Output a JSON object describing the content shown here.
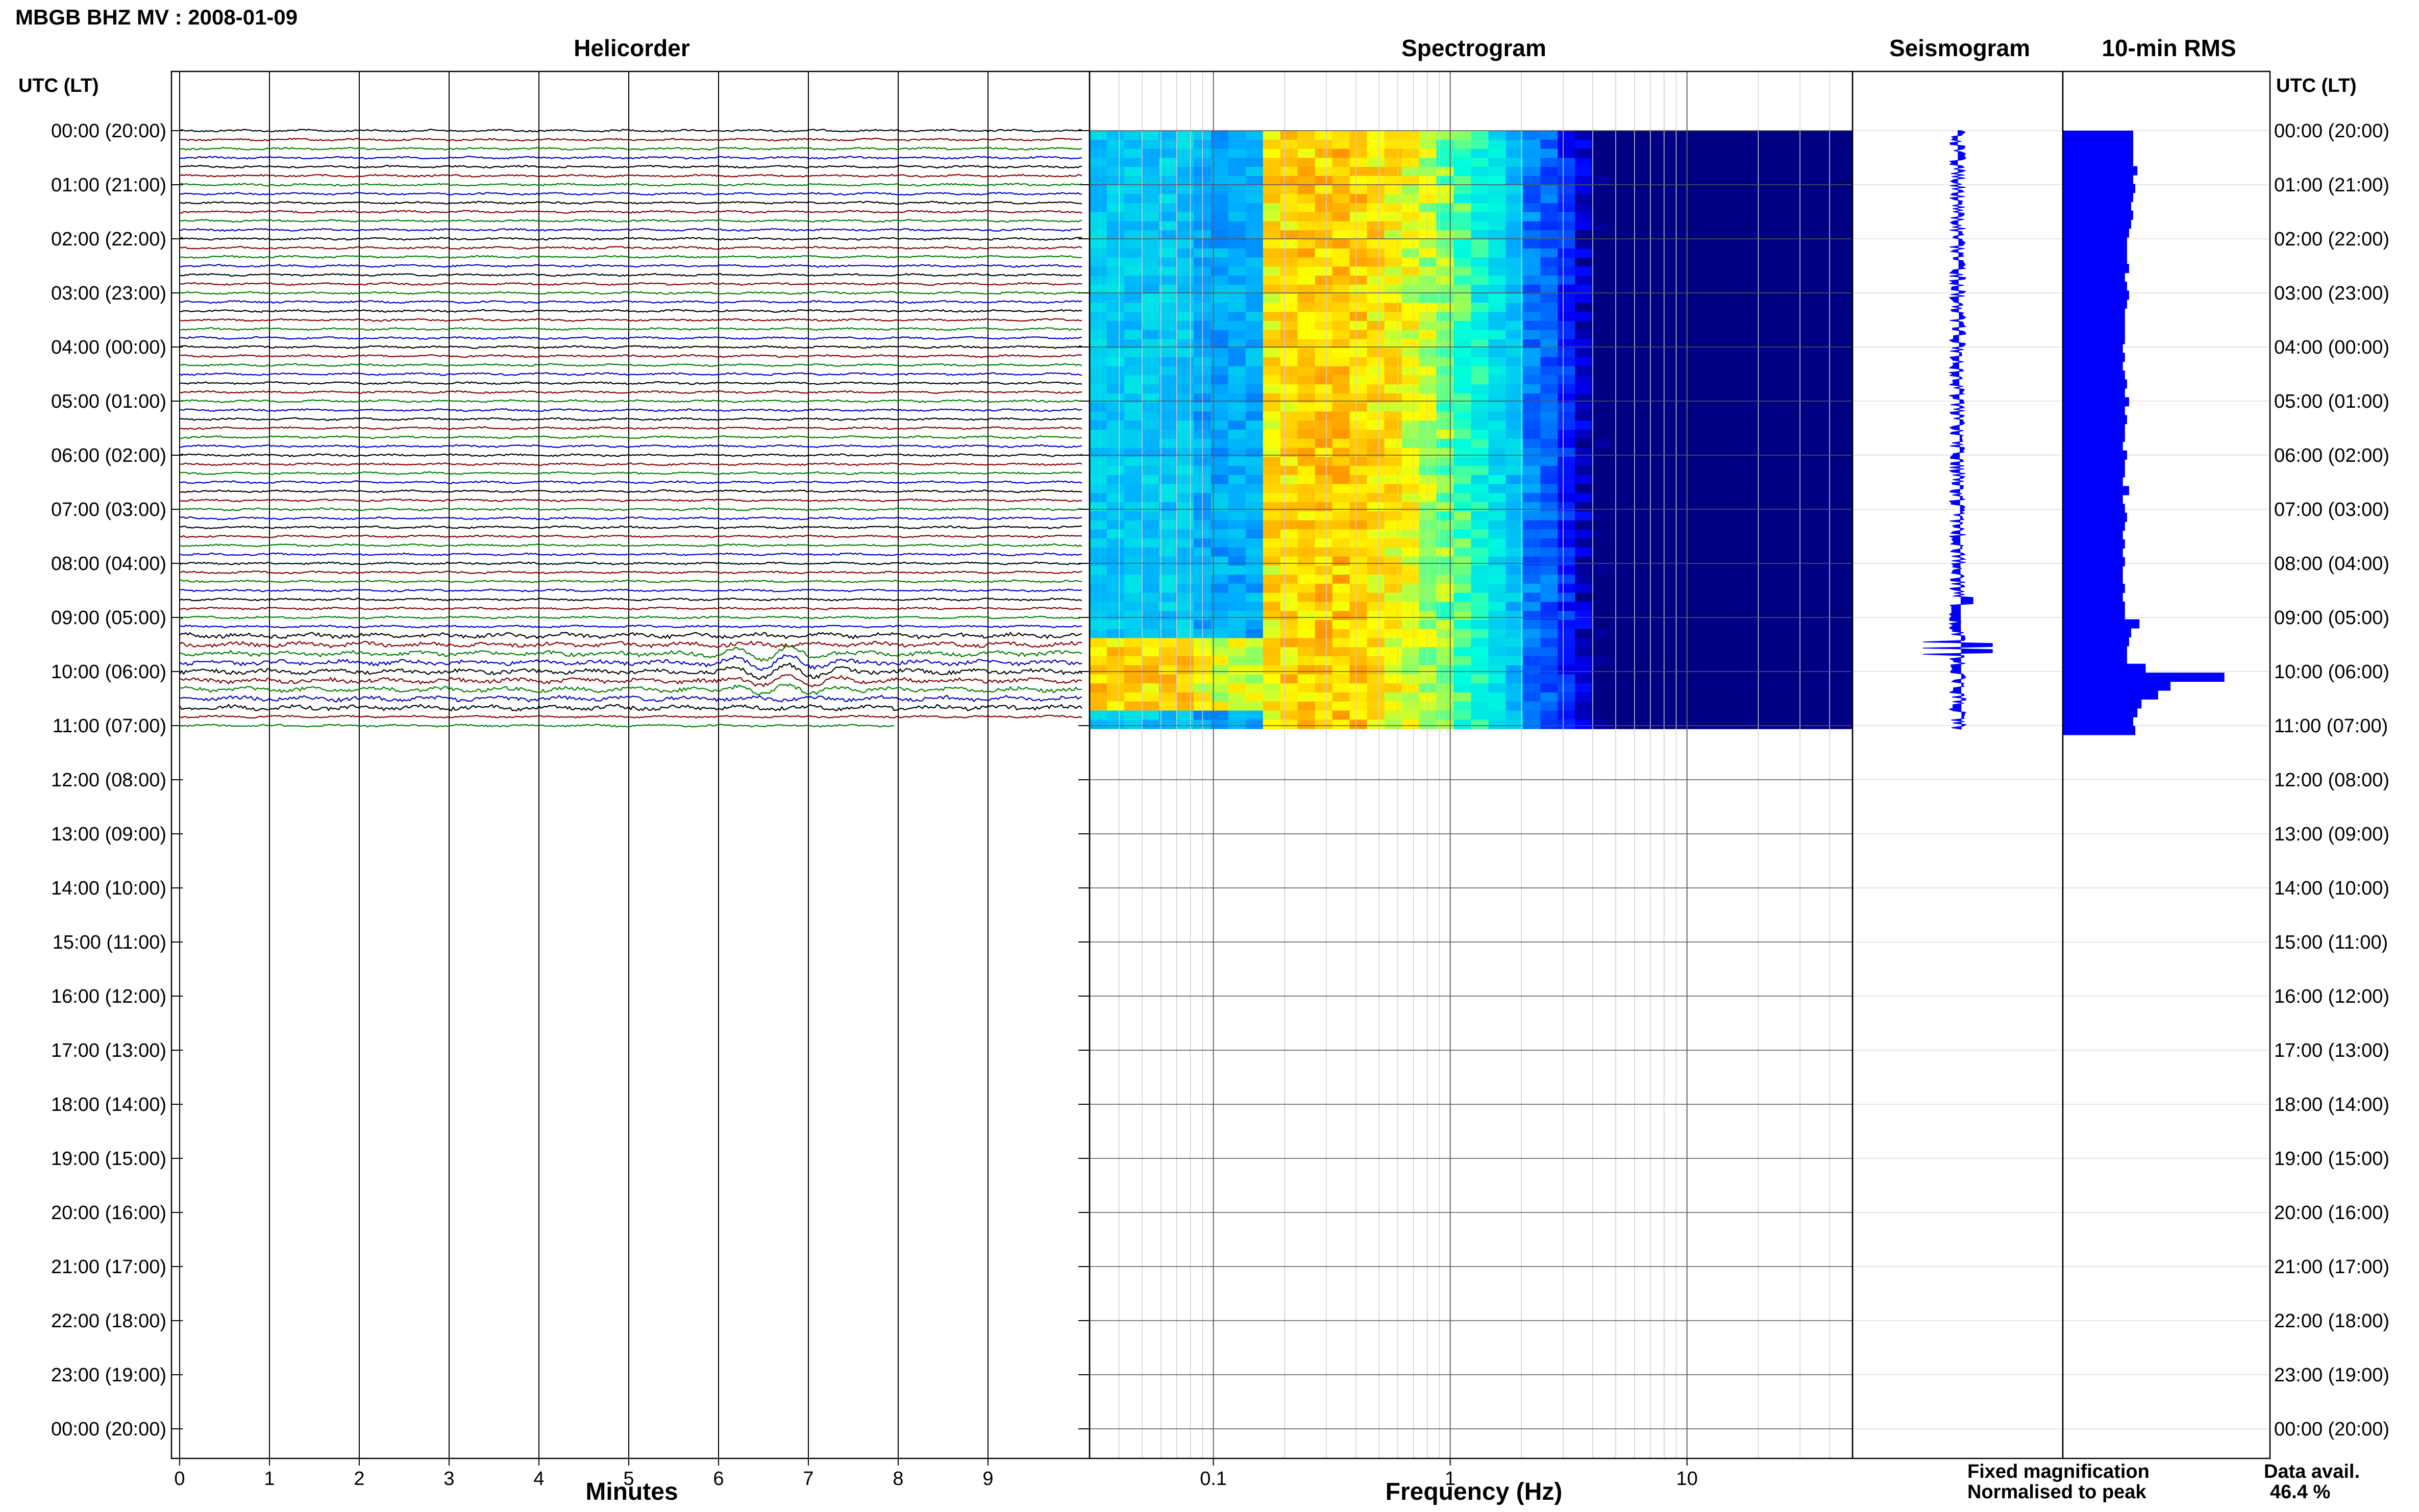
{
  "header": {
    "station_title": "MBGB BHZ MV : 2008-01-09"
  },
  "chart_data": {
    "type": "helicorder-spectrogram",
    "panels": {
      "helicorder": "Helicorder",
      "spectrogram": "Spectrogram",
      "seismogram": "Seismogram",
      "rms": "10-min RMS"
    },
    "time_axis_label": "UTC (LT)",
    "time_rows": [
      "00:00 (20:00)",
      "01:00 (21:00)",
      "02:00 (22:00)",
      "03:00 (23:00)",
      "04:00 (00:00)",
      "05:00 (01:00)",
      "06:00 (02:00)",
      "07:00 (03:00)",
      "08:00 (04:00)",
      "09:00 (05:00)",
      "10:00 (06:00)",
      "11:00 (07:00)",
      "12:00 (08:00)",
      "13:00 (09:00)",
      "14:00 (10:00)",
      "15:00 (11:00)",
      "16:00 (12:00)",
      "17:00 (13:00)",
      "18:00 (14:00)",
      "19:00 (15:00)",
      "20:00 (16:00)",
      "21:00 (17:00)",
      "22:00 (18:00)",
      "23:00 (19:00)",
      "00:00 (20:00)"
    ],
    "data_end_hour": 11,
    "helicorder_axis": {
      "xlabel": "Minutes",
      "ticks": [
        "0",
        "1",
        "2",
        "3",
        "4",
        "5",
        "6",
        "7",
        "8",
        "9"
      ],
      "xlim": [
        0,
        10
      ],
      "trace_colors": [
        "#000000",
        "#8b0000",
        "#008000",
        "#0000cd"
      ],
      "last_trace_minutes": 8
    },
    "spectrogram_axis": {
      "xlabel": "Frequency (Hz)",
      "scale": "log",
      "xlim": [
        0.03,
        50
      ],
      "ticks": [
        "0.1",
        "1",
        "10"
      ],
      "tick_values": [
        0.1,
        1,
        10
      ]
    },
    "rms": {
      "values": [
        0.34,
        0.34,
        0.34,
        0.34,
        0.36,
        0.34,
        0.35,
        0.34,
        0.33,
        0.34,
        0.33,
        0.32,
        0.31,
        0.31,
        0.31,
        0.32,
        0.3,
        0.31,
        0.32,
        0.31,
        0.3,
        0.3,
        0.3,
        0.3,
        0.29,
        0.3,
        0.29,
        0.3,
        0.31,
        0.3,
        0.32,
        0.3,
        0.31,
        0.3,
        0.3,
        0.29,
        0.31,
        0.3,
        0.3,
        0.29,
        0.32,
        0.29,
        0.3,
        0.31,
        0.3,
        0.29,
        0.3,
        0.29,
        0.3,
        0.29,
        0.29,
        0.3,
        0.29,
        0.3,
        0.3,
        0.37,
        0.33,
        0.32,
        0.31,
        0.31,
        0.4,
        0.78,
        0.52,
        0.46,
        0.38,
        0.36,
        0.34,
        0.35
      ]
    },
    "legend": {
      "fixed": "Fixed magnification",
      "normalised": "Normalised to peak",
      "fixed_color": "#0000ff",
      "normalised_color": "#ff0000"
    },
    "data_availability": {
      "label": "Data avail.",
      "value": "46.4 %"
    }
  }
}
